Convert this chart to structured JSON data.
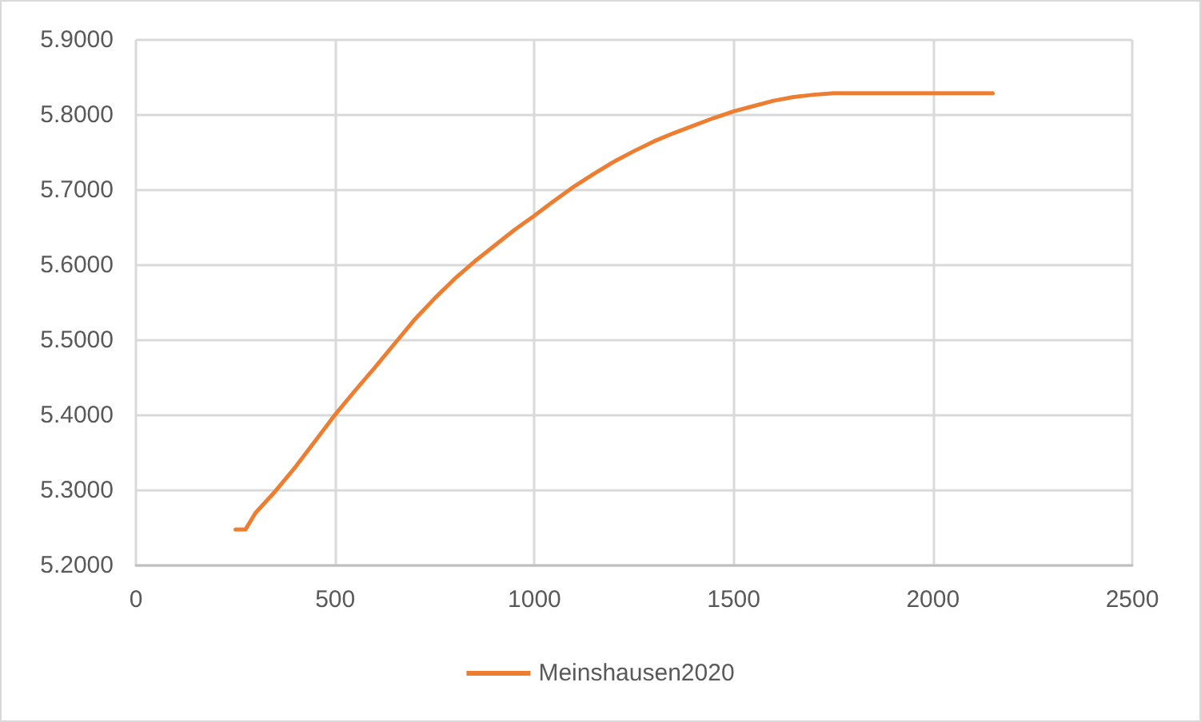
{
  "chart_data": {
    "type": "line",
    "x": [
      250,
      275,
      300,
      350,
      400,
      450,
      500,
      550,
      600,
      650,
      700,
      750,
      800,
      850,
      900,
      950,
      1000,
      1050,
      1100,
      1150,
      1200,
      1250,
      1300,
      1350,
      1400,
      1450,
      1500,
      1550,
      1600,
      1650,
      1700,
      1750,
      2150
    ],
    "series": [
      {
        "name": "Meinshausen2020",
        "color": "#ed7d31",
        "values": [
          5.248,
          5.248,
          5.27,
          5.299,
          5.331,
          5.366,
          5.401,
          5.433,
          5.464,
          5.496,
          5.528,
          5.556,
          5.582,
          5.605,
          5.626,
          5.647,
          5.666,
          5.686,
          5.705,
          5.722,
          5.738,
          5.752,
          5.765,
          5.776,
          5.786,
          5.796,
          5.805,
          5.812,
          5.819,
          5.824,
          5.827,
          5.829,
          5.829
        ]
      }
    ],
    "xlim": [
      0,
      2500
    ],
    "xticks": [
      0,
      500,
      1000,
      1500,
      2000,
      2500
    ],
    "ylim": [
      5.2,
      5.9
    ],
    "yticks": [
      {
        "value": 5.2,
        "label": "5.2000"
      },
      {
        "value": 5.3,
        "label": "5.3000"
      },
      {
        "value": 5.4,
        "label": "5.4000"
      },
      {
        "value": 5.5,
        "label": "5.5000"
      },
      {
        "value": 5.6,
        "label": "5.6000"
      },
      {
        "value": 5.7,
        "label": "5.7000"
      },
      {
        "value": 5.8,
        "label": "5.8000"
      },
      {
        "value": 5.9,
        "label": "5.9000"
      }
    ],
    "grid": true,
    "legend": "bottom",
    "marker": "none",
    "line_style": "solid"
  }
}
